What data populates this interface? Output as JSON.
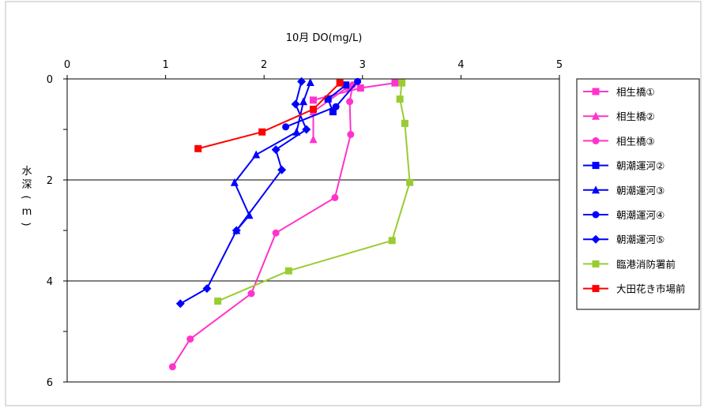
{
  "chart_data": {
    "type": "line",
    "title": "10月  DO(mg/L)",
    "ylabel": "水深(m)",
    "xlabel": "",
    "xlim": [
      0,
      5
    ],
    "ylim": [
      0,
      6
    ],
    "y_inverted": true,
    "x_axis_position": "top",
    "x_ticks": [
      "0",
      "1",
      "2",
      "3",
      "4",
      "5"
    ],
    "y_ticks": [
      "0",
      "2",
      "4",
      "6"
    ],
    "grid": "horizontal",
    "legend_position": "right",
    "series": [
      {
        "name": "相生橋①",
        "color": "#FF33CC",
        "marker": "square",
        "points": [
          [
            3.33,
            0.08
          ],
          [
            2.98,
            0.18
          ],
          [
            2.5,
            0.42
          ]
        ]
      },
      {
        "name": "相生橋②",
        "color": "#FF33CC",
        "marker": "triangle",
        "points": [
          [
            2.85,
            0.16
          ],
          [
            2.5,
            0.65
          ],
          [
            2.5,
            1.2
          ]
        ]
      },
      {
        "name": "相生橋③",
        "color": "#FF33CC",
        "marker": "circle",
        "points": [
          [
            2.9,
            0.12
          ],
          [
            2.87,
            0.45
          ],
          [
            2.88,
            1.1
          ],
          [
            2.72,
            2.35
          ],
          [
            2.12,
            3.05
          ],
          [
            1.87,
            4.25
          ],
          [
            1.25,
            5.15
          ],
          [
            1.07,
            5.7
          ]
        ]
      },
      {
        "name": "朝潮運河②",
        "color": "#0000FF",
        "marker": "square",
        "points": [
          [
            2.83,
            0.12
          ],
          [
            2.65,
            0.4
          ],
          [
            2.7,
            0.65
          ]
        ]
      },
      {
        "name": "朝潮運河③",
        "color": "#0000FF",
        "marker": "triangle",
        "points": [
          [
            2.47,
            0.07
          ],
          [
            2.4,
            0.45
          ],
          [
            2.33,
            1.05
          ],
          [
            1.92,
            1.5
          ],
          [
            1.7,
            2.05
          ],
          [
            1.85,
            2.7
          ],
          [
            1.72,
            3.0
          ]
        ]
      },
      {
        "name": "朝潮運河④",
        "color": "#0000FF",
        "marker": "circle",
        "points": [
          [
            2.95,
            0.05
          ],
          [
            2.73,
            0.55
          ],
          [
            2.22,
            0.95
          ]
        ]
      },
      {
        "name": "朝潮運河⑤",
        "color": "#0000FF",
        "marker": "diamond",
        "points": [
          [
            2.38,
            0.05
          ],
          [
            2.32,
            0.5
          ],
          [
            2.43,
            1.0
          ],
          [
            2.12,
            1.4
          ],
          [
            2.18,
            1.8
          ],
          [
            1.72,
            3.0
          ],
          [
            1.42,
            4.15
          ],
          [
            1.15,
            4.45
          ]
        ]
      },
      {
        "name": "臨港消防署前",
        "color": "#99CC33",
        "marker": "square",
        "points": [
          [
            3.4,
            0.08
          ],
          [
            3.38,
            0.4
          ],
          [
            3.43,
            0.88
          ],
          [
            3.48,
            2.05
          ],
          [
            3.3,
            3.2
          ],
          [
            2.25,
            3.8
          ],
          [
            1.53,
            4.4
          ]
        ]
      },
      {
        "name": "大田花き市場前",
        "color": "#FF0000",
        "marker": "square",
        "points": [
          [
            2.77,
            0.08
          ],
          [
            2.5,
            0.6
          ],
          [
            1.98,
            1.05
          ],
          [
            1.33,
            1.38
          ]
        ]
      }
    ]
  }
}
